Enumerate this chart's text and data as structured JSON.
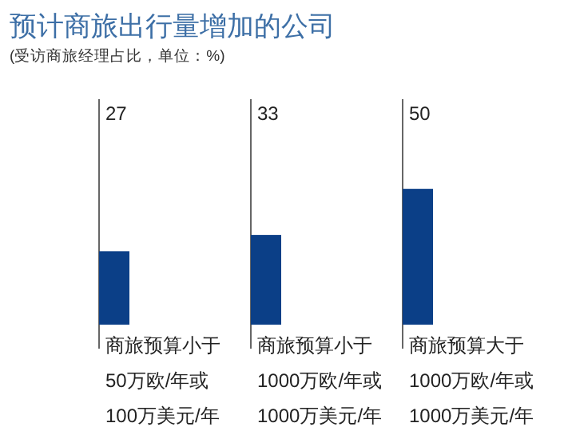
{
  "chart_data": {
    "type": "bar",
    "title": "预计商旅出行量增加的公司",
    "subtitle": "(受访商旅经理占比，单位：%)",
    "categories": [
      "商旅预算小于\n50万欧/年或\n100万美元/年",
      "商旅预算小于\n1000万欧/年或\n1000万美元/年",
      "商旅预算大于\n1000万欧/年或\n1000万美元/年"
    ],
    "values": [
      27,
      33,
      50
    ],
    "color": "#0b3f87",
    "data_labels": true
  }
}
